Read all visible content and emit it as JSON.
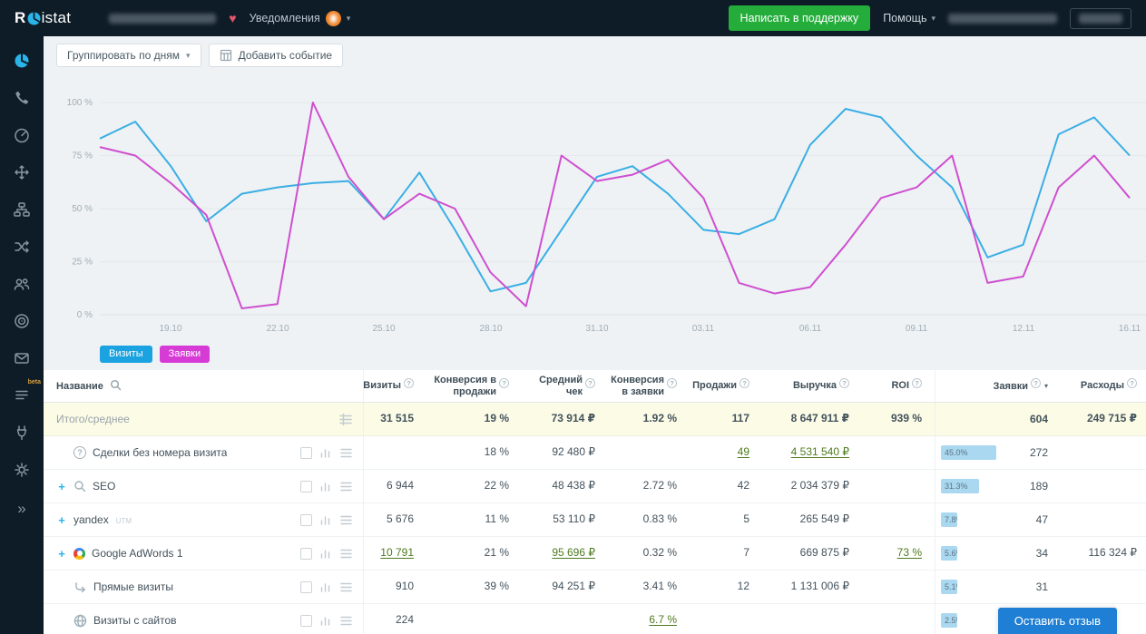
{
  "topbar": {
    "logo_r": "R",
    "logo_rest": "istat",
    "notifications_label": "Уведомления",
    "support_button": "Написать в поддержку",
    "help_label": "Помощь"
  },
  "sidebar": {
    "icons": [
      "pie-chart",
      "phone",
      "gauge",
      "move",
      "sitemap",
      "shuffle",
      "users",
      "target",
      "mail",
      "list-beta",
      "plug",
      "gear",
      "collapse"
    ],
    "beta_label": "beta",
    "accent_color": "#2ab4e8"
  },
  "toolbar": {
    "group_by_label": "Группировать по дням",
    "add_event_label": "Добавить событие"
  },
  "chart_data": {
    "type": "line",
    "x_ticks": [
      "19.10",
      "22.10",
      "25.10",
      "28.10",
      "31.10",
      "03.11",
      "06.11",
      "09.11",
      "12.11",
      "16.11"
    ],
    "y_ticks": [
      "100 %",
      "75 %",
      "50 %",
      "25 %",
      "0 %"
    ],
    "ylim": [
      0,
      100
    ],
    "grid": true,
    "legend_position": "bottom-left",
    "series": [
      {
        "name": "Визиты",
        "color": "#3aaee4",
        "values": [
          83,
          91,
          70,
          44,
          57,
          60,
          62,
          63,
          45,
          67,
          40,
          11,
          15,
          40,
          65,
          70,
          57,
          40,
          38,
          45,
          80,
          97,
          93,
          75,
          60,
          27,
          33,
          85,
          93,
          75
        ]
      },
      {
        "name": "Заявки",
        "color": "#cf4fcf",
        "values": [
          79,
          75,
          62,
          47,
          3,
          5,
          100,
          65,
          45,
          57,
          50,
          20,
          4,
          75,
          63,
          66,
          73,
          55,
          15,
          10,
          13,
          33,
          55,
          60,
          75,
          15,
          18,
          60,
          75,
          55
        ]
      }
    ]
  },
  "legend": {
    "visits_label": "Визиты",
    "visits_color": "#1aa3e0",
    "leads_label": "Заявки",
    "leads_color": "#d63bd6"
  },
  "table": {
    "name_header": "Название",
    "headers": {
      "visits": "Визиты",
      "conv_sales": "Конверсия в продажи",
      "avg_check": "Средний чек",
      "conv_leads": "Конверсия в заявки",
      "sales": "Продажи",
      "revenue": "Выручка",
      "roi": "ROI",
      "leads": "Заявки",
      "costs": "Расходы"
    },
    "total": {
      "name": "Итого/среднее",
      "visits": "31 515",
      "conv_sales": "19 %",
      "avg_check": "73 914 ₽",
      "conv_leads": "1.92 %",
      "sales": "117",
      "revenue": "8 647 911 ₽",
      "roi": "939 %",
      "leads": "604",
      "costs": "249 715 ₽"
    },
    "rows": [
      {
        "name": "Сделки без номера визита",
        "conv_sales": "18 %",
        "avg_check": "92 480 ₽",
        "sales": "49",
        "revenue": "4 531 540 ₽",
        "leads": "272",
        "leads_pct": "45.0%"
      },
      {
        "name": "SEO",
        "visits": "6 944",
        "conv_sales": "22 %",
        "avg_check": "48 438 ₽",
        "conv_leads": "2.72 %",
        "sales": "42",
        "revenue": "2 034 379 ₽",
        "leads": "189",
        "leads_pct": "31.3%"
      },
      {
        "name": "yandex",
        "name_sup": "UTM",
        "visits": "5 676",
        "conv_sales": "11 %",
        "avg_check": "53 110 ₽",
        "conv_leads": "0.83 %",
        "sales": "5",
        "revenue": "265 549 ₽",
        "leads": "47",
        "leads_pct": "7.8%"
      },
      {
        "name": "Google AdWords 1",
        "visits": "10 791",
        "conv_sales": "21 %",
        "avg_check": "95 696 ₽",
        "conv_leads": "0.32 %",
        "sales": "7",
        "revenue": "669 875 ₽",
        "roi": "73 %",
        "leads": "34",
        "leads_pct": "5.6%",
        "costs": "116 324 ₽"
      },
      {
        "name": "Прямые визиты",
        "visits": "910",
        "conv_sales": "39 %",
        "avg_check": "94 251 ₽",
        "conv_leads": "3.41 %",
        "sales": "12",
        "revenue": "1 131 006 ₽",
        "leads": "31",
        "leads_pct": "5.1%"
      },
      {
        "name": "Визиты с сайтов",
        "visits": "224",
        "conv_leads": "6.7 %",
        "leads_pct": "2.5%"
      }
    ]
  },
  "feedback_button": "Оставить отзыв"
}
